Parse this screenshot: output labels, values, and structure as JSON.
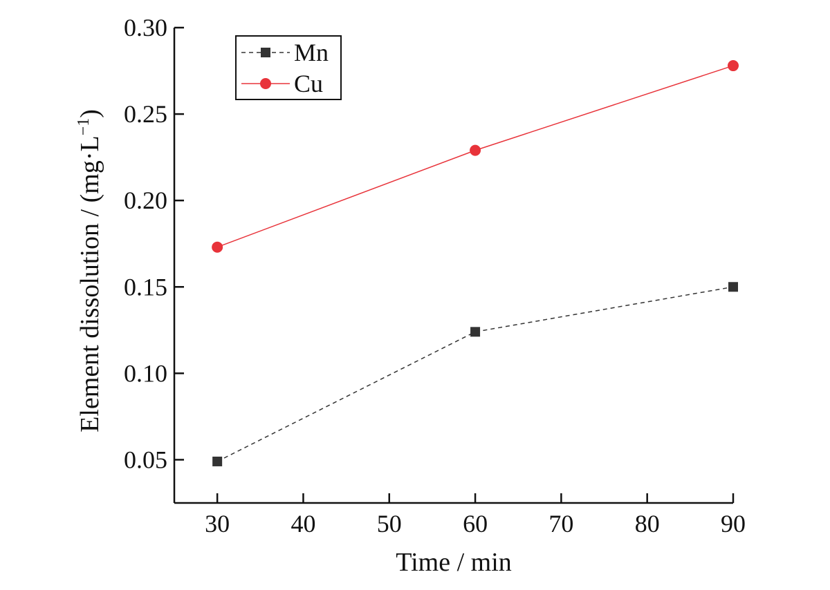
{
  "chart_data": {
    "type": "line",
    "x": [
      30,
      60,
      90
    ],
    "series": [
      {
        "name": "Mn",
        "values": [
          0.049,
          0.124,
          0.15
        ],
        "color": "#333333",
        "marker": "square",
        "line_style": "dashed"
      },
      {
        "name": "Cu",
        "values": [
          0.173,
          0.229,
          0.278
        ],
        "color": "#e8333a",
        "marker": "circle",
        "line_style": "solid"
      }
    ],
    "xlabel": "Time / min",
    "ylabel_main": "Element dissolution / (mg·L",
    "ylabel_sup": "−1",
    "ylabel_close": ")",
    "xlim": [
      25,
      90
    ],
    "ylim": [
      0.025,
      0.3
    ],
    "xticks": [
      30,
      40,
      50,
      60,
      70,
      80,
      90
    ],
    "yticks": [
      0.05,
      0.1,
      0.15,
      0.2,
      0.25,
      0.3
    ],
    "ytick_labels": [
      "0.05",
      "0.10",
      "0.15",
      "0.20",
      "0.25",
      "0.30"
    ],
    "grid": false,
    "legend_position": "top-left",
    "axis_color": "#111111"
  }
}
